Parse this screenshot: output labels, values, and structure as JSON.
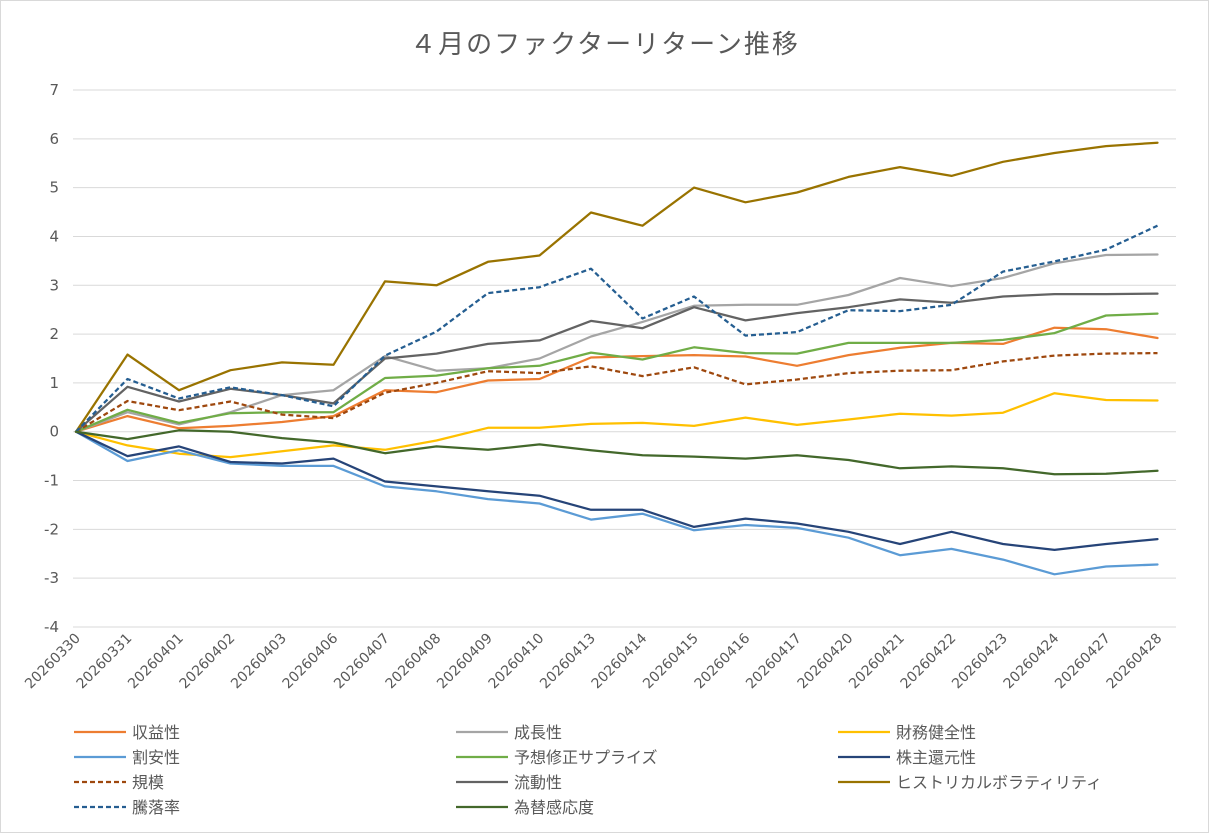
{
  "chart_data": {
    "type": "line",
    "title": "４月のファクターリターン推移",
    "xlabel": "",
    "ylabel": "",
    "ylim": [
      -4,
      7
    ],
    "yticks": [
      7,
      6,
      5,
      4,
      3,
      2,
      1,
      0,
      -1,
      -2,
      -3,
      -4
    ],
    "grid": true,
    "legend_position": "bottom",
    "categories": [
      "20260330",
      "20260331",
      "20260401",
      "20260402",
      "20260403",
      "20260406",
      "20260407",
      "20260408",
      "20260409",
      "20260410",
      "20260413",
      "20260414",
      "20260415",
      "20260416",
      "20260417",
      "20260420",
      "20260421",
      "20260422",
      "20260423",
      "20260424",
      "20260427",
      "20260428"
    ],
    "series": [
      {
        "name": "収益性",
        "color": "#ED7D31",
        "dash": "solid",
        "values": [
          0,
          0.32,
          0.07,
          0.12,
          0.2,
          0.32,
          0.85,
          0.81,
          1.05,
          1.08,
          1.52,
          1.55,
          1.57,
          1.54,
          1.35,
          1.57,
          1.72,
          1.82,
          1.8,
          2.13,
          2.1,
          1.92
        ]
      },
      {
        "name": "成長性",
        "color": "#A5A5A5",
        "dash": "solid",
        "values": [
          0,
          0.4,
          0.15,
          0.4,
          0.75,
          0.85,
          1.55,
          1.25,
          1.3,
          1.5,
          1.95,
          2.25,
          2.58,
          2.6,
          2.6,
          2.8,
          3.15,
          2.98,
          3.15,
          3.45,
          3.62,
          3.63
        ]
      },
      {
        "name": "財務健全性",
        "color": "#FFC000",
        "dash": "solid",
        "values": [
          0,
          -0.28,
          -0.45,
          -0.52,
          -0.4,
          -0.28,
          -0.37,
          -0.18,
          0.08,
          0.08,
          0.16,
          0.18,
          0.12,
          0.29,
          0.14,
          0.25,
          0.37,
          0.33,
          0.39,
          0.79,
          0.65,
          0.64
        ]
      },
      {
        "name": "割安性",
        "color": "#5B9BD5",
        "dash": "solid",
        "values": [
          0,
          -0.6,
          -0.38,
          -0.65,
          -0.7,
          -0.7,
          -1.12,
          -1.22,
          -1.38,
          -1.47,
          -1.8,
          -1.68,
          -2.02,
          -1.91,
          -1.97,
          -2.17,
          -2.53,
          -2.4,
          -2.62,
          -2.92,
          -2.76,
          -2.72
        ]
      },
      {
        "name": "予想修正サプライズ",
        "color": "#70AD47",
        "dash": "solid",
        "values": [
          0,
          0.45,
          0.18,
          0.38,
          0.4,
          0.4,
          1.1,
          1.15,
          1.3,
          1.35,
          1.62,
          1.48,
          1.73,
          1.61,
          1.6,
          1.82,
          1.82,
          1.82,
          1.88,
          2.02,
          2.38,
          2.42
        ]
      },
      {
        "name": "株主還元性",
        "color": "#264478",
        "dash": "solid",
        "values": [
          0,
          -0.5,
          -0.3,
          -0.62,
          -0.65,
          -0.55,
          -1.02,
          -1.12,
          -1.22,
          -1.31,
          -1.6,
          -1.6,
          -1.95,
          -1.78,
          -1.88,
          -2.05,
          -2.3,
          -2.05,
          -2.3,
          -2.42,
          -2.3,
          -2.2
        ]
      },
      {
        "name": "規模",
        "color": "#9E480E",
        "dash": "dashed",
        "values": [
          0,
          0.63,
          0.44,
          0.62,
          0.35,
          0.28,
          0.8,
          1.0,
          1.24,
          1.2,
          1.34,
          1.14,
          1.32,
          0.97,
          1.07,
          1.2,
          1.25,
          1.26,
          1.44,
          1.56,
          1.6,
          1.61
        ]
      },
      {
        "name": "流動性",
        "color": "#636363",
        "dash": "solid",
        "values": [
          0,
          0.92,
          0.62,
          0.88,
          0.75,
          0.58,
          1.5,
          1.6,
          1.8,
          1.87,
          2.27,
          2.12,
          2.55,
          2.28,
          2.43,
          2.55,
          2.71,
          2.64,
          2.77,
          2.82,
          2.82,
          2.83
        ]
      },
      {
        "name": "ヒストリカルボラティリティ",
        "color": "#997300",
        "dash": "solid",
        "values": [
          0,
          1.58,
          0.85,
          1.26,
          1.42,
          1.37,
          3.08,
          3.0,
          3.48,
          3.61,
          4.49,
          4.22,
          5.0,
          4.7,
          4.9,
          5.22,
          5.42,
          5.24,
          5.53,
          5.71,
          5.85,
          5.92
        ]
      },
      {
        "name": "騰落率",
        "color": "#255E91",
        "dash": "dashed",
        "values": [
          0,
          1.08,
          0.68,
          0.91,
          0.75,
          0.52,
          1.56,
          2.05,
          2.84,
          2.96,
          3.34,
          2.32,
          2.77,
          1.97,
          2.04,
          2.49,
          2.47,
          2.6,
          3.28,
          3.49,
          3.73,
          4.22
        ]
      },
      {
        "name": "為替感応度",
        "color": "#43682B",
        "dash": "solid",
        "values": [
          0,
          -0.15,
          0.03,
          0.0,
          -0.13,
          -0.22,
          -0.44,
          -0.3,
          -0.37,
          -0.26,
          -0.38,
          -0.48,
          -0.51,
          -0.55,
          -0.48,
          -0.58,
          -0.75,
          -0.71,
          -0.75,
          -0.87,
          -0.86,
          -0.8
        ]
      }
    ]
  }
}
